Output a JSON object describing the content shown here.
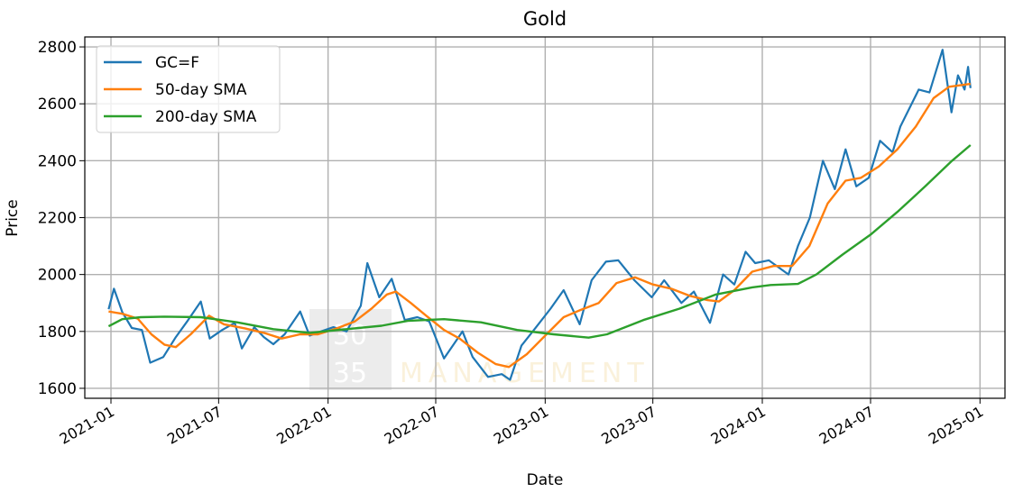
{
  "chart_data": {
    "type": "line",
    "title": "Gold",
    "xlabel": "Date",
    "ylabel": "Price",
    "x_ticks": [
      "2021-01",
      "2021-07",
      "2022-01",
      "2022-07",
      "2023-01",
      "2023-07",
      "2024-01",
      "2024-07",
      "2025-01"
    ],
    "y_ticks": [
      1600,
      1800,
      2000,
      2200,
      2400,
      2600,
      2800
    ],
    "xlim": [
      "2020-11-18",
      "2025-02-12"
    ],
    "ylim": [
      1565,
      2835
    ],
    "grid": true,
    "legend_position": "upper-left",
    "watermark": {
      "top": "30",
      "bottom": "35",
      "text": "MANAGEMENT"
    },
    "series": [
      {
        "name": "GC=F",
        "color": "#1f77b4",
        "points": [
          [
            "2020-12-28",
            1878
          ],
          [
            "2021-01-06",
            1950
          ],
          [
            "2021-01-20",
            1868
          ],
          [
            "2021-02-05",
            1812
          ],
          [
            "2021-02-22",
            1805
          ],
          [
            "2021-03-08",
            1690
          ],
          [
            "2021-03-30",
            1710
          ],
          [
            "2021-04-20",
            1780
          ],
          [
            "2021-05-10",
            1838
          ],
          [
            "2021-06-01",
            1905
          ],
          [
            "2021-06-16",
            1775
          ],
          [
            "2021-07-07",
            1805
          ],
          [
            "2021-07-28",
            1830
          ],
          [
            "2021-08-09",
            1740
          ],
          [
            "2021-08-30",
            1815
          ],
          [
            "2021-09-15",
            1780
          ],
          [
            "2021-10-01",
            1755
          ],
          [
            "2021-10-20",
            1790
          ],
          [
            "2021-11-15",
            1870
          ],
          [
            "2021-12-01",
            1785
          ],
          [
            "2021-12-20",
            1800
          ],
          [
            "2022-01-10",
            1815
          ],
          [
            "2022-02-01",
            1800
          ],
          [
            "2022-02-25",
            1890
          ],
          [
            "2022-03-08",
            2040
          ],
          [
            "2022-03-28",
            1920
          ],
          [
            "2022-04-18",
            1985
          ],
          [
            "2022-05-10",
            1840
          ],
          [
            "2022-05-31",
            1850
          ],
          [
            "2022-06-20",
            1835
          ],
          [
            "2022-07-15",
            1705
          ],
          [
            "2022-08-15",
            1800
          ],
          [
            "2022-09-01",
            1710
          ],
          [
            "2022-09-27",
            1640
          ],
          [
            "2022-10-20",
            1650
          ],
          [
            "2022-11-03",
            1630
          ],
          [
            "2022-11-22",
            1750
          ],
          [
            "2022-12-15",
            1810
          ],
          [
            "2023-01-10",
            1880
          ],
          [
            "2023-02-01",
            1945
          ],
          [
            "2023-02-28",
            1825
          ],
          [
            "2023-03-20",
            1980
          ],
          [
            "2023-04-13",
            2045
          ],
          [
            "2023-05-04",
            2050
          ],
          [
            "2023-05-31",
            1980
          ],
          [
            "2023-06-29",
            1920
          ],
          [
            "2023-07-20",
            1980
          ],
          [
            "2023-08-18",
            1900
          ],
          [
            "2023-09-08",
            1940
          ],
          [
            "2023-10-05",
            1830
          ],
          [
            "2023-10-27",
            2000
          ],
          [
            "2023-11-15",
            1965
          ],
          [
            "2023-12-04",
            2080
          ],
          [
            "2023-12-20",
            2040
          ],
          [
            "2024-01-12",
            2050
          ],
          [
            "2024-02-14",
            2000
          ],
          [
            "2024-03-01",
            2100
          ],
          [
            "2024-03-21",
            2200
          ],
          [
            "2024-04-12",
            2400
          ],
          [
            "2024-05-02",
            2300
          ],
          [
            "2024-05-20",
            2440
          ],
          [
            "2024-06-07",
            2310
          ],
          [
            "2024-06-28",
            2340
          ],
          [
            "2024-07-17",
            2470
          ],
          [
            "2024-08-07",
            2430
          ],
          [
            "2024-08-20",
            2520
          ],
          [
            "2024-09-20",
            2650
          ],
          [
            "2024-10-08",
            2640
          ],
          [
            "2024-10-30",
            2790
          ],
          [
            "2024-11-14",
            2570
          ],
          [
            "2024-11-25",
            2700
          ],
          [
            "2024-12-06",
            2650
          ],
          [
            "2024-12-12",
            2730
          ],
          [
            "2024-12-16",
            2655
          ]
        ]
      },
      {
        "name": "50-day SMA",
        "color": "#ff7f0e",
        "points": [
          [
            "2020-12-28",
            1870
          ],
          [
            "2021-01-20",
            1862
          ],
          [
            "2021-02-15",
            1845
          ],
          [
            "2021-03-10",
            1790
          ],
          [
            "2021-04-01",
            1753
          ],
          [
            "2021-04-20",
            1745
          ],
          [
            "2021-05-15",
            1790
          ],
          [
            "2021-06-15",
            1855
          ],
          [
            "2021-07-10",
            1825
          ],
          [
            "2021-08-15",
            1810
          ],
          [
            "2021-09-15",
            1795
          ],
          [
            "2021-10-15",
            1775
          ],
          [
            "2021-11-15",
            1790
          ],
          [
            "2021-12-15",
            1790
          ],
          [
            "2022-01-15",
            1810
          ],
          [
            "2022-02-15",
            1835
          ],
          [
            "2022-03-15",
            1880
          ],
          [
            "2022-04-10",
            1930
          ],
          [
            "2022-04-25",
            1940
          ],
          [
            "2022-05-20",
            1900
          ],
          [
            "2022-06-15",
            1855
          ],
          [
            "2022-07-15",
            1805
          ],
          [
            "2022-08-10",
            1775
          ],
          [
            "2022-09-10",
            1725
          ],
          [
            "2022-10-10",
            1685
          ],
          [
            "2022-11-01",
            1675
          ],
          [
            "2022-12-01",
            1720
          ],
          [
            "2023-01-01",
            1785
          ],
          [
            "2023-02-01",
            1850
          ],
          [
            "2023-03-01",
            1875
          ],
          [
            "2023-04-01",
            1900
          ],
          [
            "2023-05-01",
            1970
          ],
          [
            "2023-06-01",
            1990
          ],
          [
            "2023-07-01",
            1965
          ],
          [
            "2023-08-01",
            1950
          ],
          [
            "2023-09-01",
            1925
          ],
          [
            "2023-10-01",
            1910
          ],
          [
            "2023-10-20",
            1905
          ],
          [
            "2023-11-15",
            1945
          ],
          [
            "2023-12-15",
            2010
          ],
          [
            "2024-01-20",
            2030
          ],
          [
            "2024-02-20",
            2030
          ],
          [
            "2024-03-20",
            2100
          ],
          [
            "2024-04-20",
            2250
          ],
          [
            "2024-05-20",
            2330
          ],
          [
            "2024-06-15",
            2340
          ],
          [
            "2024-07-15",
            2380
          ],
          [
            "2024-08-15",
            2440
          ],
          [
            "2024-09-15",
            2520
          ],
          [
            "2024-10-15",
            2620
          ],
          [
            "2024-11-10",
            2660
          ],
          [
            "2024-12-16",
            2670
          ]
        ]
      },
      {
        "name": "200-day SMA",
        "color": "#2ca02c",
        "points": [
          [
            "2020-12-28",
            1818
          ],
          [
            "2021-01-20",
            1843
          ],
          [
            "2021-02-20",
            1850
          ],
          [
            "2021-04-01",
            1852
          ],
          [
            "2021-06-01",
            1850
          ],
          [
            "2021-08-01",
            1832
          ],
          [
            "2021-10-01",
            1808
          ],
          [
            "2021-12-01",
            1795
          ],
          [
            "2022-02-01",
            1808
          ],
          [
            "2022-04-01",
            1820
          ],
          [
            "2022-05-15",
            1837
          ],
          [
            "2022-07-15",
            1843
          ],
          [
            "2022-09-15",
            1832
          ],
          [
            "2022-11-15",
            1805
          ],
          [
            "2023-01-15",
            1790
          ],
          [
            "2023-03-15",
            1778
          ],
          [
            "2023-04-15",
            1790
          ],
          [
            "2023-06-15",
            1840
          ],
          [
            "2023-08-15",
            1880
          ],
          [
            "2023-10-15",
            1930
          ],
          [
            "2023-12-15",
            1955
          ],
          [
            "2024-01-15",
            1963
          ],
          [
            "2024-03-01",
            1967
          ],
          [
            "2024-04-01",
            2000
          ],
          [
            "2024-05-15",
            2070
          ],
          [
            "2024-07-01",
            2140
          ],
          [
            "2024-08-15",
            2220
          ],
          [
            "2024-10-01",
            2310
          ],
          [
            "2024-11-15",
            2400
          ],
          [
            "2024-12-16",
            2455
          ]
        ]
      }
    ]
  }
}
